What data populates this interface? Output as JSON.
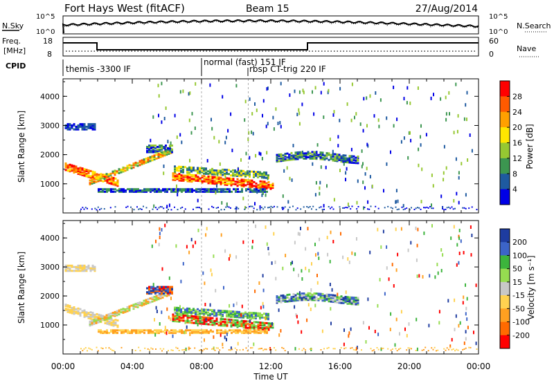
{
  "header": {
    "title": "Fort Hays West (fitACF)",
    "beam": "Beam 15",
    "date": "27/Aug/2014"
  },
  "noise_panel": {
    "left_label": "N.Sky",
    "left_ticks": [
      "10^5",
      "10^0"
    ],
    "right_ticks": [
      "10^5",
      "10^0"
    ],
    "right_label": "N.Search"
  },
  "freq_panel": {
    "left_label_line1": "Freq.",
    "left_label_line2": "[MHz]",
    "left_ticks": [
      "18",
      "8"
    ],
    "right_ticks": [
      "60",
      "0"
    ],
    "right_label": "Nave"
  },
  "cpid_panel": {
    "label": "CPID",
    "modes": [
      {
        "name": "themis -3300 IF",
        "start_hour": 0
      },
      {
        "name": "normal (fast) 151 IF",
        "start_hour": 8.0
      },
      {
        "name": "rbsp CT-trig 220 IF",
        "start_hour": 10.7
      }
    ]
  },
  "chart_data": [
    {
      "type": "heatmap",
      "panel": "power",
      "ylabel": "Slant Range [km]",
      "xlabel": "",
      "xlim": [
        0,
        24
      ],
      "ylim": [
        0,
        4600
      ],
      "yticks": [
        1000,
        2000,
        3000,
        4000
      ],
      "colorbar_label": "Power [dB]",
      "colorbar_ticks": [
        "28",
        "24",
        "20",
        "16",
        "12",
        "8",
        "4"
      ],
      "colorbar_colors": [
        "#ff0000",
        "#ff5a00",
        "#ffa000",
        "#ffe600",
        "#96c832",
        "#3c9650",
        "#1e5aa0",
        "#0000e6"
      ]
    },
    {
      "type": "heatmap",
      "panel": "velocity",
      "ylabel": "Slant Range [km]",
      "xlabel": "Time UT",
      "xlim": [
        0,
        24
      ],
      "ylim": [
        0,
        4600
      ],
      "yticks": [
        1000,
        2000,
        3000,
        4000
      ],
      "xtick_labels": [
        "00:00",
        "04:00",
        "08:00",
        "12:00",
        "16:00",
        "20:00",
        "00:00"
      ],
      "colorbar_label": "Velocity [m s⁻¹]",
      "colorbar_ticks": [
        "200",
        "100",
        "50",
        "15",
        "-15",
        "-50",
        "-100",
        "-200"
      ],
      "colorbar_colors": [
        "#1e3ca0",
        "#3c64c8",
        "#3cb43c",
        "#96dc50",
        "#c8c8c8",
        "#ffd250",
        "#ffa020",
        "#ff6a00",
        "#ff0000"
      ]
    }
  ]
}
